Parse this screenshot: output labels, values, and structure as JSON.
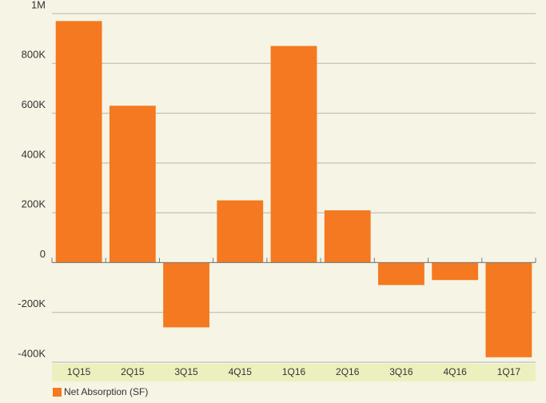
{
  "chart_data": {
    "type": "bar",
    "categories": [
      "1Q15",
      "2Q15",
      "3Q15",
      "4Q15",
      "1Q16",
      "2Q16",
      "3Q16",
      "4Q16",
      "1Q17"
    ],
    "series": [
      {
        "name": "Net Absorption (SF)",
        "color": "#f47920",
        "values": [
          970000,
          630000,
          -260000,
          250000,
          870000,
          210000,
          -90000,
          -70000,
          -380000
        ]
      }
    ],
    "ylim": [
      -400000,
      1000000
    ],
    "yticks": [
      {
        "value": -400000,
        "label": "-400K"
      },
      {
        "value": -200000,
        "label": "-200K"
      },
      0,
      {
        "value": 200000,
        "label": "200K"
      },
      {
        "value": 400000,
        "label": "400K"
      },
      {
        "value": 600000,
        "label": "600K"
      },
      {
        "value": 800000,
        "label": "800K"
      },
      {
        "value": 1000000,
        "label": "1M"
      }
    ],
    "grid": true
  }
}
